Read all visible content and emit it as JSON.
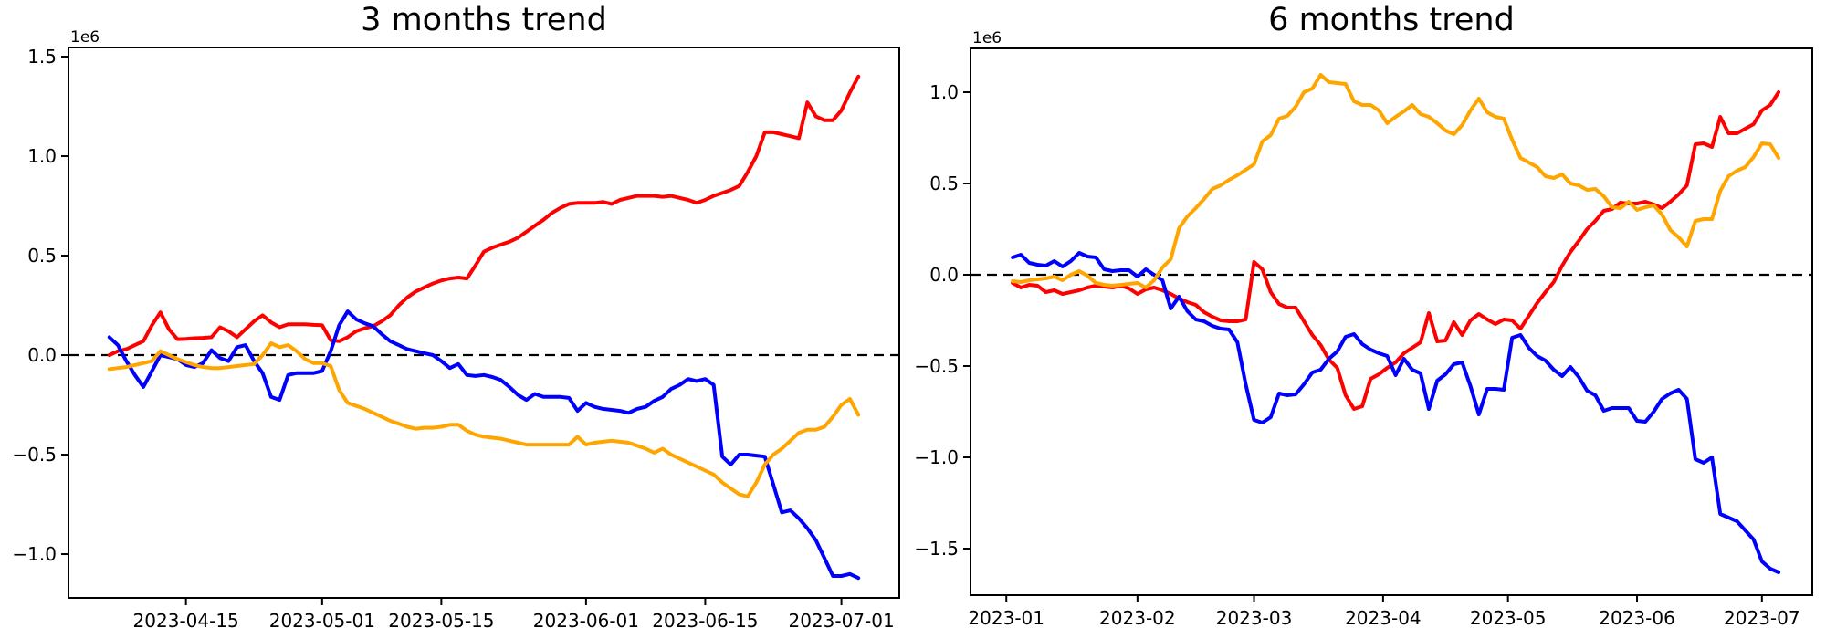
{
  "figure": {
    "background": "#ffffff",
    "text_color": "#000000"
  },
  "chart_data": [
    {
      "type": "line",
      "title": "3 months trend",
      "offset_label": "1e6",
      "x_unit": "day-index",
      "xlim": [
        -4.8,
        92.8
      ],
      "ylim": [
        -1.22,
        1.546
      ],
      "grid": false,
      "legend": null,
      "zero_line": true,
      "x_axis": {
        "tick_values": [
          9,
          25,
          39,
          56,
          70,
          86
        ],
        "tick_labels": [
          "2023-04-15",
          "2023-05-01",
          "2023-05-15",
          "2023-06-01",
          "2023-06-15",
          "2023-07-01"
        ]
      },
      "y_axis": {
        "tick_values": [
          1.5,
          1.0,
          0.5,
          0.0,
          -0.5,
          -1.0
        ],
        "tick_labels": [
          "1.5",
          "1.0",
          "0.5",
          "0.0",
          "−0.5",
          "−1.0"
        ]
      },
      "series": [
        {
          "name": "red",
          "color": "#ff0000",
          "x_start": 0,
          "x_step": 1,
          "values": [
            0.0,
            0.02,
            0.03,
            0.05,
            0.07,
            0.15,
            0.215,
            0.13,
            0.08,
            0.082,
            0.085,
            0.087,
            0.09,
            0.14,
            0.12,
            0.09,
            0.13,
            0.17,
            0.2,
            0.165,
            0.14,
            0.155,
            0.155,
            0.155,
            0.152,
            0.15,
            0.075,
            0.07,
            0.09,
            0.12,
            0.135,
            0.145,
            0.17,
            0.2,
            0.25,
            0.29,
            0.32,
            0.34,
            0.36,
            0.375,
            0.385,
            0.39,
            0.385,
            0.45,
            0.52,
            0.54,
            0.555,
            0.57,
            0.59,
            0.62,
            0.65,
            0.68,
            0.715,
            0.74,
            0.76,
            0.765,
            0.765,
            0.765,
            0.77,
            0.76,
            0.78,
            0.79,
            0.8,
            0.8,
            0.8,
            0.795,
            0.8,
            0.79,
            0.78,
            0.765,
            0.78,
            0.8,
            0.815,
            0.83,
            0.85,
            0.92,
            1.0,
            1.12,
            1.12,
            1.11,
            1.1,
            1.09,
            1.27,
            1.2,
            1.18,
            1.18,
            1.23,
            1.32,
            1.4
          ]
        },
        {
          "name": "blue",
          "color": "#0000ff",
          "x_start": 0,
          "x_step": 1,
          "values": [
            0.09,
            0.05,
            -0.03,
            -0.1,
            -0.16,
            -0.08,
            0.0,
            -0.01,
            -0.02,
            -0.05,
            -0.06,
            -0.04,
            0.025,
            -0.015,
            -0.03,
            0.04,
            0.05,
            -0.03,
            -0.09,
            -0.21,
            -0.225,
            -0.1,
            -0.09,
            -0.09,
            -0.09,
            -0.08,
            0.02,
            0.15,
            0.22,
            0.18,
            0.16,
            0.145,
            0.105,
            0.07,
            0.05,
            0.03,
            0.02,
            0.01,
            0.0,
            -0.03,
            -0.065,
            -0.045,
            -0.1,
            -0.105,
            -0.1,
            -0.11,
            -0.125,
            -0.16,
            -0.2,
            -0.225,
            -0.195,
            -0.21,
            -0.21,
            -0.21,
            -0.215,
            -0.28,
            -0.24,
            -0.26,
            -0.27,
            -0.275,
            -0.28,
            -0.29,
            -0.27,
            -0.26,
            -0.23,
            -0.21,
            -0.17,
            -0.15,
            -0.12,
            -0.13,
            -0.12,
            -0.15,
            -0.51,
            -0.55,
            -0.5,
            -0.5,
            -0.505,
            -0.51,
            -0.65,
            -0.79,
            -0.78,
            -0.82,
            -0.87,
            -0.93,
            -1.02,
            -1.11,
            -1.11,
            -1.1,
            -1.12
          ]
        },
        {
          "name": "orange",
          "color": "#ffa500",
          "x_start": 0,
          "x_step": 1,
          "values": [
            -0.07,
            -0.065,
            -0.06,
            -0.05,
            -0.04,
            -0.03,
            0.02,
            0.0,
            -0.02,
            -0.035,
            -0.05,
            -0.06,
            -0.065,
            -0.065,
            -0.06,
            -0.055,
            -0.05,
            -0.045,
            0.0,
            0.06,
            0.04,
            0.05,
            0.02,
            -0.02,
            -0.04,
            -0.04,
            -0.055,
            -0.175,
            -0.24,
            -0.255,
            -0.27,
            -0.29,
            -0.31,
            -0.33,
            -0.345,
            -0.36,
            -0.37,
            -0.365,
            -0.365,
            -0.36,
            -0.35,
            -0.35,
            -0.38,
            -0.4,
            -0.41,
            -0.415,
            -0.42,
            -0.43,
            -0.44,
            -0.45,
            -0.45,
            -0.45,
            -0.45,
            -0.45,
            -0.45,
            -0.41,
            -0.45,
            -0.44,
            -0.435,
            -0.43,
            -0.435,
            -0.44,
            -0.455,
            -0.47,
            -0.49,
            -0.47,
            -0.5,
            -0.52,
            -0.54,
            -0.56,
            -0.58,
            -0.6,
            -0.64,
            -0.67,
            -0.7,
            -0.71,
            -0.64,
            -0.55,
            -0.5,
            -0.47,
            -0.43,
            -0.39,
            -0.375,
            -0.375,
            -0.36,
            -0.31,
            -0.25,
            -0.22,
            -0.3
          ]
        }
      ]
    },
    {
      "type": "line",
      "title": "6 months trend",
      "offset_label": "1e6",
      "x_unit": "day-index",
      "xlim": [
        -10.1,
        192.1
      ],
      "ylim": [
        -1.755,
        1.24
      ],
      "grid": false,
      "legend": null,
      "zero_line": true,
      "x_axis": {
        "tick_values": [
          -1.5,
          30,
          58,
          89,
          119,
          150,
          180
        ],
        "tick_labels": [
          "2023-01",
          "2023-02",
          "2023-03",
          "2023-04",
          "2023-05",
          "2023-06",
          "2023-07"
        ]
      },
      "y_axis": {
        "tick_values": [
          1.0,
          0.5,
          0.0,
          -0.5,
          -1.0,
          -1.5
        ],
        "tick_labels": [
          "1.0",
          "0.5",
          "0.0",
          "−0.5",
          "−1.0",
          "−1.5"
        ]
      },
      "series": [
        {
          "name": "red",
          "color": "#ff0000",
          "x_start": 0,
          "x_step": 2,
          "values": [
            -0.045,
            -0.07,
            -0.055,
            -0.06,
            -0.095,
            -0.085,
            -0.105,
            -0.095,
            -0.085,
            -0.07,
            -0.06,
            -0.065,
            -0.07,
            -0.06,
            -0.075,
            -0.105,
            -0.08,
            -0.07,
            -0.085,
            -0.105,
            -0.13,
            -0.15,
            -0.165,
            -0.205,
            -0.23,
            -0.25,
            -0.255,
            -0.255,
            -0.245,
            0.07,
            0.03,
            -0.095,
            -0.16,
            -0.18,
            -0.18,
            -0.255,
            -0.33,
            -0.385,
            -0.465,
            -0.51,
            -0.66,
            -0.735,
            -0.72,
            -0.57,
            -0.545,
            -0.51,
            -0.48,
            -0.43,
            -0.4,
            -0.37,
            -0.21,
            -0.365,
            -0.36,
            -0.26,
            -0.33,
            -0.25,
            -0.215,
            -0.245,
            -0.27,
            -0.245,
            -0.25,
            -0.295,
            -0.225,
            -0.155,
            -0.095,
            -0.04,
            0.05,
            0.125,
            0.185,
            0.25,
            0.295,
            0.35,
            0.36,
            0.395,
            0.39,
            0.39,
            0.4,
            0.385,
            0.365,
            0.4,
            0.44,
            0.49,
            0.715,
            0.72,
            0.7,
            0.865,
            0.775,
            0.775,
            0.8,
            0.825,
            0.9,
            0.93,
            1.0
          ]
        },
        {
          "name": "blue",
          "color": "#0000ff",
          "x_start": 0,
          "x_step": 2,
          "values": [
            0.095,
            0.11,
            0.065,
            0.055,
            0.05,
            0.075,
            0.045,
            0.075,
            0.12,
            0.1,
            0.095,
            0.03,
            0.02,
            0.025,
            0.025,
            -0.01,
            0.03,
            0.0,
            -0.03,
            -0.185,
            -0.12,
            -0.2,
            -0.245,
            -0.255,
            -0.28,
            -0.295,
            -0.3,
            -0.37,
            -0.6,
            -0.795,
            -0.81,
            -0.78,
            -0.65,
            -0.66,
            -0.655,
            -0.6,
            -0.535,
            -0.52,
            -0.46,
            -0.42,
            -0.34,
            -0.325,
            -0.38,
            -0.41,
            -0.43,
            -0.445,
            -0.55,
            -0.46,
            -0.52,
            -0.54,
            -0.735,
            -0.58,
            -0.545,
            -0.49,
            -0.48,
            -0.61,
            -0.765,
            -0.625,
            -0.625,
            -0.63,
            -0.345,
            -0.33,
            -0.4,
            -0.445,
            -0.47,
            -0.52,
            -0.555,
            -0.505,
            -0.56,
            -0.635,
            -0.66,
            -0.745,
            -0.73,
            -0.73,
            -0.73,
            -0.8,
            -0.805,
            -0.75,
            -0.68,
            -0.65,
            -0.63,
            -0.68,
            -1.01,
            -1.03,
            -1.0,
            -1.31,
            -1.33,
            -1.35,
            -1.4,
            -1.45,
            -1.57,
            -1.61,
            -1.63
          ]
        },
        {
          "name": "orange",
          "color": "#ffa500",
          "x_start": 0,
          "x_step": 2,
          "values": [
            -0.035,
            -0.04,
            -0.03,
            -0.025,
            -0.02,
            -0.01,
            -0.03,
            0.0,
            0.02,
            -0.005,
            -0.045,
            -0.055,
            -0.06,
            -0.055,
            -0.05,
            -0.045,
            -0.07,
            -0.03,
            0.04,
            0.085,
            0.255,
            0.32,
            0.365,
            0.415,
            0.47,
            0.49,
            0.52,
            0.545,
            0.575,
            0.605,
            0.73,
            0.765,
            0.855,
            0.87,
            0.92,
            1.0,
            1.02,
            1.095,
            1.055,
            1.05,
            1.045,
            0.95,
            0.93,
            0.93,
            0.9,
            0.83,
            0.865,
            0.895,
            0.93,
            0.88,
            0.865,
            0.83,
            0.79,
            0.77,
            0.82,
            0.9,
            0.965,
            0.89,
            0.865,
            0.855,
            0.74,
            0.64,
            0.615,
            0.59,
            0.54,
            0.53,
            0.55,
            0.5,
            0.49,
            0.465,
            0.47,
            0.43,
            0.37,
            0.365,
            0.4,
            0.355,
            0.37,
            0.38,
            0.33,
            0.245,
            0.205,
            0.155,
            0.295,
            0.305,
            0.305,
            0.46,
            0.54,
            0.57,
            0.59,
            0.645,
            0.72,
            0.715,
            0.64
          ]
        }
      ]
    }
  ]
}
